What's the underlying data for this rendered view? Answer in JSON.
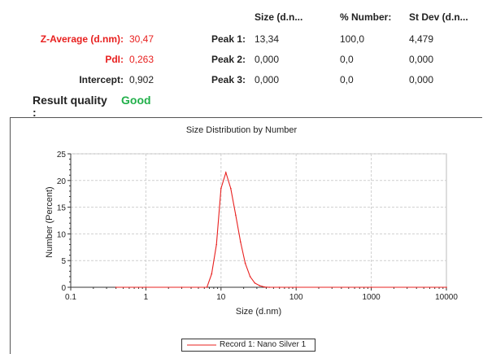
{
  "summary": {
    "header_size": "Size (d.n...",
    "header_number": "% Number:",
    "header_stdev": "St Dev (d.n...",
    "z_average_label": "Z-Average (d.nm):",
    "z_average_value": "30,47",
    "pdi_label": "PdI:",
    "pdi_value": "0,263",
    "intercept_label": "Intercept:",
    "intercept_value": "0,902",
    "quality_label": "Result quality",
    "quality_colon": ":",
    "quality_value": "Good",
    "peaks": [
      {
        "label": "Peak 1:",
        "size": "13,34",
        "number": "100,0",
        "stdev": "4,479"
      },
      {
        "label": "Peak 2:",
        "size": "0,000",
        "number": "0,0",
        "stdev": "0,000"
      },
      {
        "label": "Peak 3:",
        "size": "0,000",
        "number": "0,0",
        "stdev": "0,000"
      }
    ]
  },
  "colors": {
    "red": "#e8201f",
    "green": "#22b04b",
    "series": "#e8201f"
  },
  "chart_data": {
    "type": "line",
    "title": "Size Distribution by Number",
    "xlabel": "Size (d.nm)",
    "ylabel": "Number (Percent)",
    "xscale": "log",
    "xlim": [
      0.1,
      10000
    ],
    "ylim": [
      0,
      25
    ],
    "xticks": [
      0.1,
      1,
      10,
      100,
      1000,
      10000
    ],
    "xtick_labels": [
      "0.1",
      "1",
      "10",
      "100",
      "1000",
      "10000"
    ],
    "yticks": [
      0,
      5,
      10,
      15,
      20,
      25
    ],
    "ytick_labels": [
      "0",
      "5",
      "10",
      "15",
      "20",
      "25"
    ],
    "grid": true,
    "legend": "bottom-center",
    "series": [
      {
        "name": "Record 1: Nano Silver  1",
        "x": [
          0.4,
          1,
          3,
          6.5,
          7.5,
          8.7,
          10,
          11.6,
          13.5,
          15.7,
          18.2,
          21,
          24.4,
          28.2,
          32.7,
          38,
          44,
          60,
          100,
          1000,
          10000
        ],
        "y": [
          0,
          0,
          0,
          0,
          2.5,
          8,
          18.5,
          21.5,
          18.5,
          13.5,
          8.5,
          4.5,
          2,
          0.8,
          0.3,
          0.05,
          0,
          0,
          0,
          0,
          0
        ]
      }
    ]
  }
}
